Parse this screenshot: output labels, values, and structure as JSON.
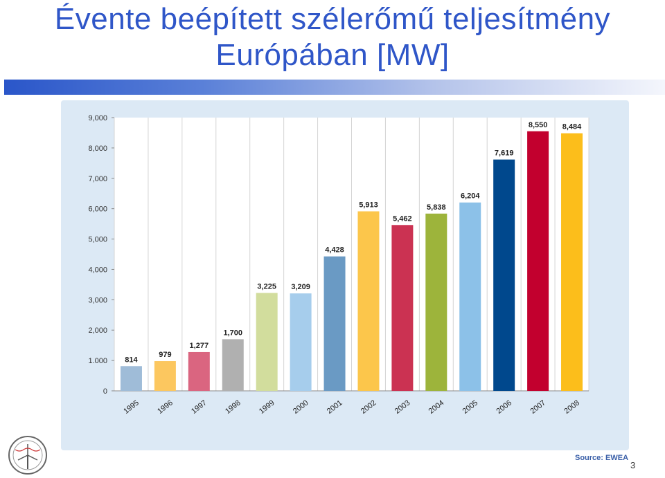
{
  "slide": {
    "title_line1": "Évente beépített szélerőmű teljesítmény",
    "title_line2": "Európában [MW]",
    "source": "Source: EWEA",
    "page_number": "3"
  },
  "chart_data": {
    "type": "bar",
    "title": "",
    "xlabel": "",
    "ylabel": "",
    "ylim": [
      0,
      9000
    ],
    "yticks": [
      0,
      1000,
      2000,
      3000,
      4000,
      5000,
      6000,
      7000,
      8000,
      9000
    ],
    "ytick_labels": [
      "0",
      "1.000",
      "2,000",
      "3,000",
      "4,000",
      "5,000",
      "6,000",
      "7,000",
      "8,000",
      "9,000"
    ],
    "grid": "vertical",
    "categories": [
      "1995",
      "1996",
      "1997",
      "1998",
      "1999",
      "2000",
      "2001",
      "2002",
      "2003",
      "2004",
      "2005",
      "2006",
      "2007",
      "2008"
    ],
    "values": [
      814,
      979,
      1277,
      1700,
      3225,
      3209,
      4428,
      5913,
      5462,
      5838,
      6204,
      7619,
      8550,
      8484
    ],
    "data_labels": [
      "814",
      "979",
      "1,277",
      "1,700",
      "3,225",
      "3,209",
      "4,428",
      "5,913",
      "5,462",
      "5,838",
      "6,204",
      "7,619",
      "8,550",
      "8,484"
    ],
    "colors": [
      "#9fbcd8",
      "#fcc75f",
      "#da6580",
      "#b0b0b0",
      "#d2dd9d",
      "#a6cdec",
      "#6a9ac4",
      "#fcc64b",
      "#cb3252",
      "#9db43b",
      "#8cc1e8",
      "#00488d",
      "#c2002e",
      "#fcbe1b"
    ]
  }
}
